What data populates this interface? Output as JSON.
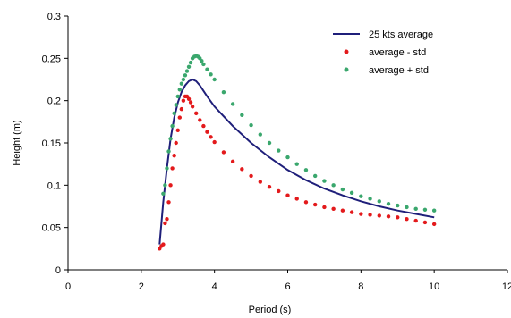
{
  "chart_data": {
    "type": "scatter",
    "title": "",
    "xlabel": "Period (s)",
    "ylabel": "Height (m)",
    "xlim": [
      0,
      12
    ],
    "ylim": [
      0,
      0.3
    ],
    "x_ticks": [
      0,
      2,
      4,
      6,
      8,
      10,
      12
    ],
    "x_tick_labels": [
      "0",
      "2",
      "4",
      "6",
      "8",
      "10",
      "12"
    ],
    "y_ticks": [
      0,
      0.05,
      0.1,
      0.15,
      0.2,
      0.25,
      0.3
    ],
    "y_tick_labels": [
      "0",
      "0.05",
      "0.1",
      "0.15",
      "0.2",
      "0.25",
      "0.3"
    ],
    "grid": false,
    "legend_position": "top-right",
    "series": [
      {
        "name": "25 kts average",
        "style": "line",
        "color": "#1f1f7a",
        "x": [
          2.5,
          2.6,
          2.7,
          2.8,
          2.9,
          3.0,
          3.1,
          3.2,
          3.3,
          3.4,
          3.5,
          3.6,
          3.8,
          4.0,
          4.5,
          5.0,
          5.5,
          6.0,
          6.5,
          7.0,
          7.5,
          8.0,
          8.5,
          9.0,
          9.5,
          10.0
        ],
        "y": [
          0.03,
          0.08,
          0.12,
          0.155,
          0.18,
          0.198,
          0.21,
          0.218,
          0.223,
          0.225,
          0.223,
          0.218,
          0.205,
          0.193,
          0.17,
          0.15,
          0.133,
          0.118,
          0.106,
          0.096,
          0.088,
          0.081,
          0.075,
          0.07,
          0.066,
          0.062
        ]
      },
      {
        "name": "average - std",
        "style": "markers",
        "color": "#e31a1c",
        "x": [
          2.5,
          2.55,
          2.6,
          2.65,
          2.7,
          2.75,
          2.8,
          2.85,
          2.9,
          2.95,
          3.0,
          3.05,
          3.1,
          3.15,
          3.2,
          3.25,
          3.3,
          3.35,
          3.4,
          3.5,
          3.6,
          3.7,
          3.8,
          3.9,
          4.0,
          4.25,
          4.5,
          4.75,
          5.0,
          5.25,
          5.5,
          5.75,
          6.0,
          6.25,
          6.5,
          6.75,
          7.0,
          7.25,
          7.5,
          7.75,
          8.0,
          8.25,
          8.5,
          8.75,
          9.0,
          9.25,
          9.5,
          9.75,
          10.0
        ],
        "y": [
          0.025,
          0.028,
          0.03,
          0.055,
          0.06,
          0.08,
          0.1,
          0.12,
          0.135,
          0.15,
          0.165,
          0.18,
          0.19,
          0.2,
          0.205,
          0.205,
          0.202,
          0.198,
          0.193,
          0.185,
          0.177,
          0.17,
          0.163,
          0.157,
          0.151,
          0.139,
          0.128,
          0.119,
          0.111,
          0.104,
          0.098,
          0.093,
          0.088,
          0.084,
          0.08,
          0.077,
          0.074,
          0.072,
          0.07,
          0.068,
          0.066,
          0.065,
          0.064,
          0.063,
          0.062,
          0.06,
          0.058,
          0.056,
          0.054
        ]
      },
      {
        "name": "average + std",
        "style": "markers",
        "color": "#3aa76d",
        "x": [
          2.6,
          2.65,
          2.7,
          2.75,
          2.8,
          2.85,
          2.9,
          2.95,
          3.0,
          3.05,
          3.1,
          3.15,
          3.2,
          3.25,
          3.3,
          3.35,
          3.4,
          3.45,
          3.5,
          3.55,
          3.6,
          3.65,
          3.7,
          3.8,
          3.9,
          4.0,
          4.25,
          4.5,
          4.75,
          5.0,
          5.25,
          5.5,
          5.75,
          6.0,
          6.25,
          6.5,
          6.75,
          7.0,
          7.25,
          7.5,
          7.75,
          8.0,
          8.25,
          8.5,
          8.75,
          9.0,
          9.25,
          9.5,
          9.75,
          10.0
        ],
        "y": [
          0.09,
          0.1,
          0.12,
          0.14,
          0.155,
          0.17,
          0.185,
          0.195,
          0.205,
          0.213,
          0.22,
          0.225,
          0.23,
          0.235,
          0.24,
          0.245,
          0.25,
          0.252,
          0.253,
          0.252,
          0.25,
          0.247,
          0.243,
          0.237,
          0.231,
          0.225,
          0.21,
          0.196,
          0.183,
          0.171,
          0.16,
          0.15,
          0.141,
          0.133,
          0.125,
          0.118,
          0.111,
          0.105,
          0.1,
          0.095,
          0.091,
          0.087,
          0.084,
          0.081,
          0.078,
          0.076,
          0.074,
          0.072,
          0.071,
          0.07
        ]
      }
    ]
  }
}
